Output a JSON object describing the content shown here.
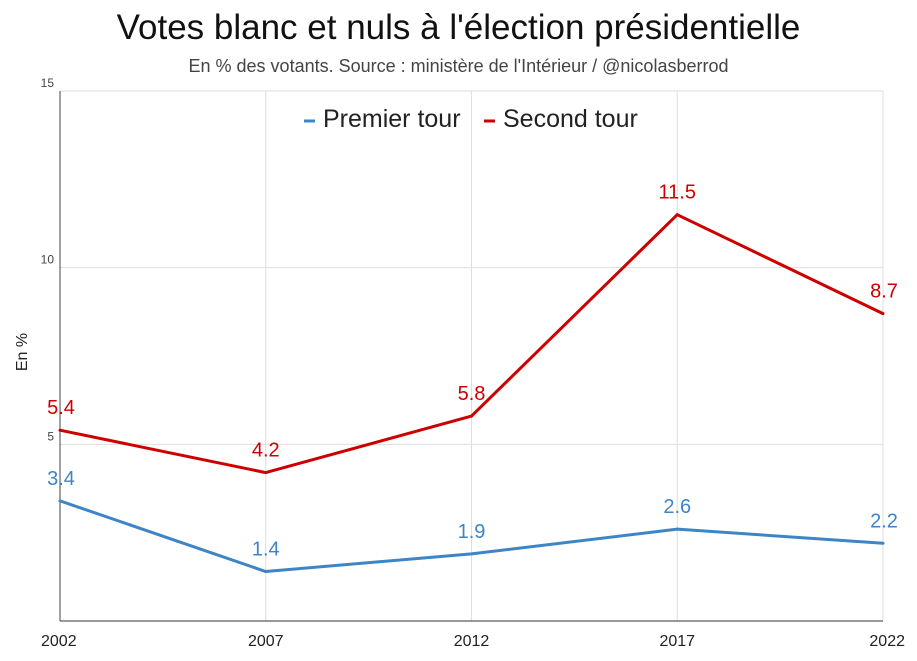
{
  "chart_data": {
    "type": "line",
    "title": "Votes blanc et nuls à l'élection présidentielle",
    "subtitle": "En % des votants. Source : ministère de l'Intérieur / @nicolasberrod",
    "xlabel": "",
    "ylabel": "En %",
    "x": [
      "2002",
      "2007",
      "2012",
      "2017",
      "2022"
    ],
    "ylim": [
      0,
      15
    ],
    "yticks": [
      "5",
      "10",
      "15"
    ],
    "grid": true,
    "legend_position": "top-center",
    "series": [
      {
        "name": "Premier tour",
        "color": "#3d85c6",
        "values": [
          3.4,
          1.4,
          1.9,
          2.6,
          2.2
        ],
        "labels": [
          "3.4",
          "1.4",
          "1.9",
          "2.6",
          "2.2"
        ]
      },
      {
        "name": "Second tour",
        "color": "#cc0000",
        "values": [
          5.4,
          4.2,
          5.8,
          11.5,
          8.7
        ],
        "labels": [
          "5.4",
          "4.2",
          "5.8",
          "11.5",
          "8.7"
        ]
      }
    ]
  }
}
